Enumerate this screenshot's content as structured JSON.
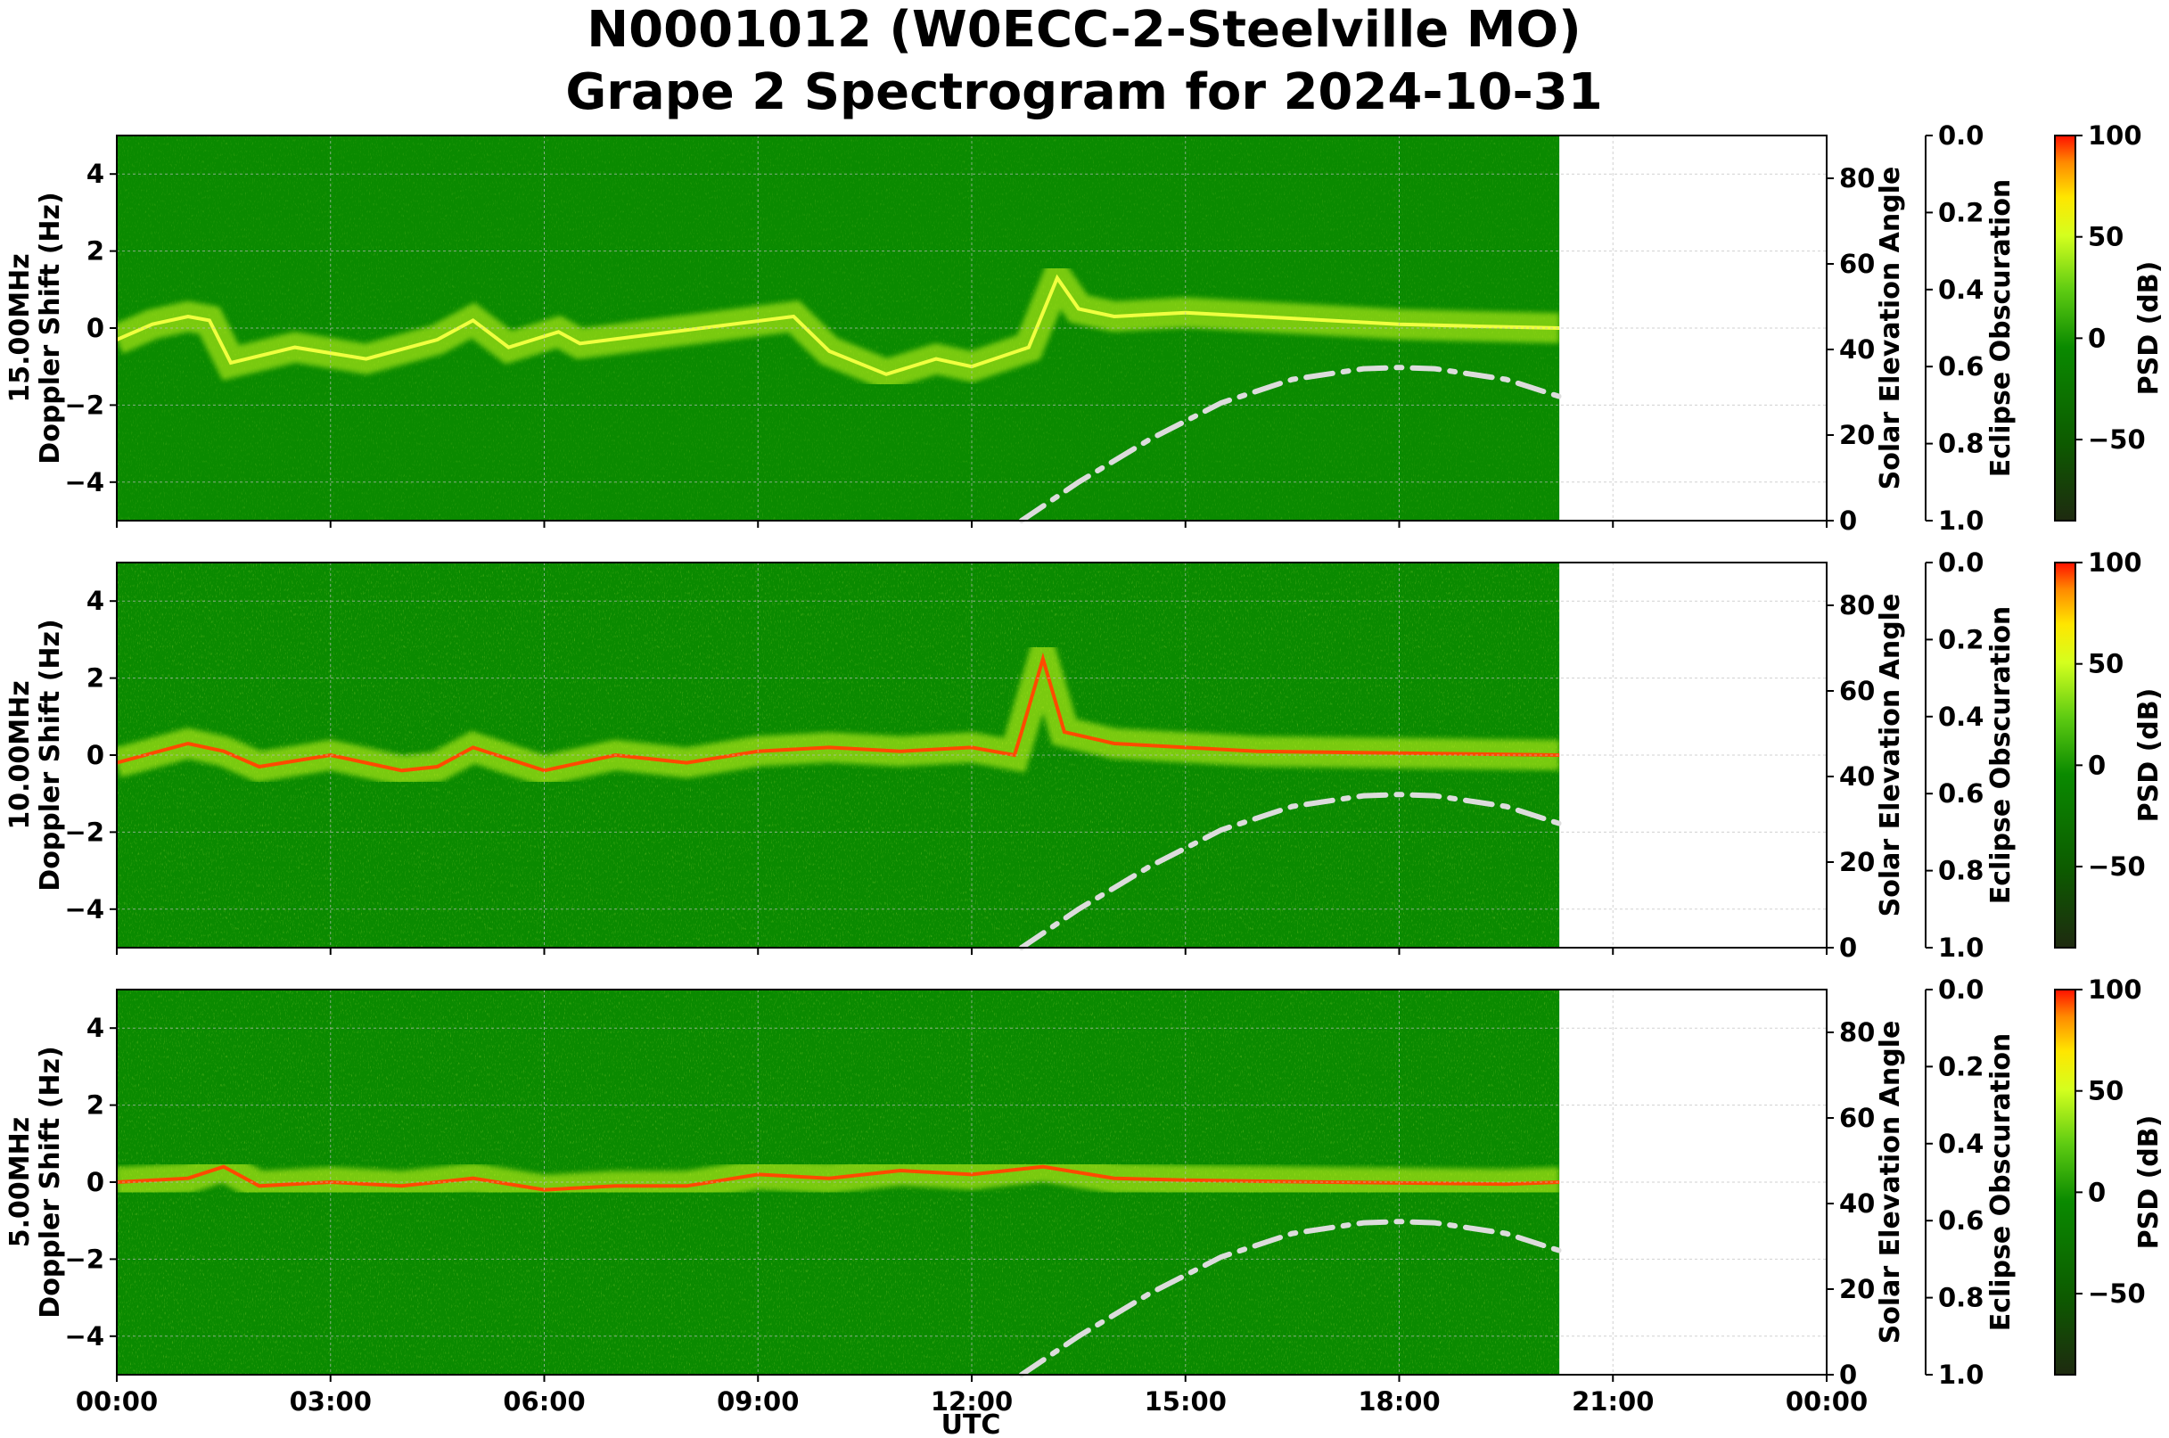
{
  "title_line1": "N0001012 (W0ECC-2-Steelville MO)",
  "title_line2": "Grape 2 Spectrogram for 2024-10-31",
  "chart_data": {
    "type": "heatmap",
    "xlabel": "UTC",
    "x_ticks": [
      "00:00",
      "03:00",
      "06:00",
      "09:00",
      "12:00",
      "15:00",
      "18:00",
      "21:00",
      "00:00"
    ],
    "x_range_hours": [
      0,
      24
    ],
    "data_end_hour": 20.25,
    "colors": {
      "low": "#1e2a10",
      "mid": "#0a8a00",
      "high_mid": "#c8ff1e",
      "high": "#ff1a00",
      "sun_curve": "#dcdcdc"
    },
    "colorbar": {
      "label": "PSD (dB)",
      "ticks": [
        "100",
        "50",
        "0",
        "−50"
      ],
      "values": [
        100,
        50,
        0,
        -50
      ],
      "range": [
        -90,
        100
      ]
    },
    "doppler_axis": {
      "ylabel": "Doppler Shift (Hz)",
      "ticks": [
        "4",
        "2",
        "0",
        "−2",
        "−4"
      ],
      "values": [
        4,
        2,
        0,
        -2,
        -4
      ],
      "ylim": [
        -5,
        5
      ]
    },
    "solar_axis": {
      "ylabel": "Solar Elevation Angle",
      "ticks": [
        "80",
        "60",
        "40",
        "20",
        "0"
      ],
      "values": [
        80,
        60,
        40,
        20,
        0
      ],
      "ylim": [
        0,
        90
      ]
    },
    "eclipse_axis": {
      "ylabel": "Eclipse Obscuration",
      "ticks": [
        "0.0",
        "0.2",
        "0.4",
        "0.6",
        "0.8",
        "1.0"
      ],
      "values": [
        0.0,
        0.2,
        0.4,
        0.6,
        0.8,
        1.0
      ],
      "ylim": [
        1.0,
        0.0
      ]
    },
    "panels": [
      {
        "frequency": "15.00MHz",
        "doppler_trace": [
          [
            0,
            -0.3
          ],
          [
            0.5,
            0.1
          ],
          [
            1,
            0.3
          ],
          [
            1.3,
            0.2
          ],
          [
            1.6,
            -0.9
          ],
          [
            2.5,
            -0.5
          ],
          [
            3.5,
            -0.8
          ],
          [
            4.5,
            -0.3
          ],
          [
            5,
            0.2
          ],
          [
            5.5,
            -0.5
          ],
          [
            6.2,
            -0.1
          ],
          [
            6.5,
            -0.4
          ],
          [
            9.5,
            0.3
          ],
          [
            10,
            -0.6
          ],
          [
            10.8,
            -1.2
          ],
          [
            11.5,
            -0.8
          ],
          [
            12,
            -1.0
          ],
          [
            12.8,
            -0.5
          ],
          [
            13.2,
            1.3
          ],
          [
            13.5,
            0.5
          ],
          [
            14,
            0.3
          ],
          [
            15,
            0.4
          ],
          [
            16,
            0.3
          ],
          [
            17,
            0.2
          ],
          [
            18,
            0.1
          ],
          [
            19,
            0.05
          ],
          [
            20.25,
            0
          ]
        ]
      },
      {
        "frequency": "10.00MHz",
        "doppler_trace": [
          [
            0,
            -0.2
          ],
          [
            1,
            0.3
          ],
          [
            1.5,
            0.1
          ],
          [
            2,
            -0.3
          ],
          [
            3,
            0.0
          ],
          [
            4,
            -0.4
          ],
          [
            4.5,
            -0.3
          ],
          [
            5,
            0.2
          ],
          [
            6,
            -0.4
          ],
          [
            7,
            0.0
          ],
          [
            8,
            -0.2
          ],
          [
            9,
            0.1
          ],
          [
            10,
            0.2
          ],
          [
            11,
            0.1
          ],
          [
            12,
            0.2
          ],
          [
            12.6,
            0.0
          ],
          [
            12.7,
            0.6
          ],
          [
            13,
            2.5
          ],
          [
            13.3,
            0.6
          ],
          [
            14,
            0.3
          ],
          [
            15,
            0.2
          ],
          [
            16,
            0.1
          ],
          [
            18,
            0.05
          ],
          [
            20.25,
            0
          ]
        ]
      },
      {
        "frequency": "5.00MHz",
        "doppler_trace": [
          [
            0,
            0.0
          ],
          [
            1,
            0.1
          ],
          [
            1.5,
            0.4
          ],
          [
            2,
            -0.1
          ],
          [
            3,
            0.0
          ],
          [
            4,
            -0.1
          ],
          [
            5,
            0.1
          ],
          [
            6,
            -0.2
          ],
          [
            7,
            -0.1
          ],
          [
            8,
            -0.1
          ],
          [
            9,
            0.2
          ],
          [
            10,
            0.1
          ],
          [
            11,
            0.3
          ],
          [
            12,
            0.2
          ],
          [
            13,
            0.4
          ],
          [
            14,
            0.1
          ],
          [
            15,
            0.05
          ],
          [
            17,
            0.0
          ],
          [
            19.5,
            -0.05
          ],
          [
            20.25,
            0
          ]
        ]
      }
    ],
    "solar_elevation": [
      [
        12.7,
        0
      ],
      [
        13.5,
        9
      ],
      [
        14.5,
        19
      ],
      [
        15.5,
        27.5
      ],
      [
        16.5,
        33
      ],
      [
        17.5,
        35.5
      ],
      [
        18,
        35.8
      ],
      [
        18.5,
        35.5
      ],
      [
        19.5,
        33
      ],
      [
        20.25,
        29
      ]
    ]
  }
}
